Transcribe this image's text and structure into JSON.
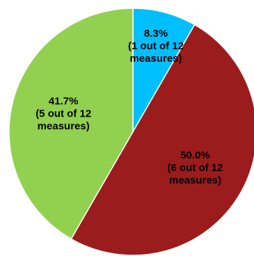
{
  "chart_data": {
    "type": "pie",
    "title": "",
    "series": [
      {
        "values": [
          8.3,
          50.0,
          41.7
        ],
        "counts": [
          1,
          6,
          5
        ],
        "total": 12,
        "labels": [
          [
            "8.3%",
            "(1 out of 12",
            "measures)"
          ],
          [
            "50.0%",
            "(6 out of 12",
            "measures)"
          ],
          [
            "41.7%",
            "(5 out of 12",
            "measures)"
          ]
        ]
      }
    ],
    "colors": [
      "#00BFFF",
      "#9B1C1C",
      "#92D050"
    ],
    "start_angle_deg": 0,
    "direction": "clockwise"
  }
}
